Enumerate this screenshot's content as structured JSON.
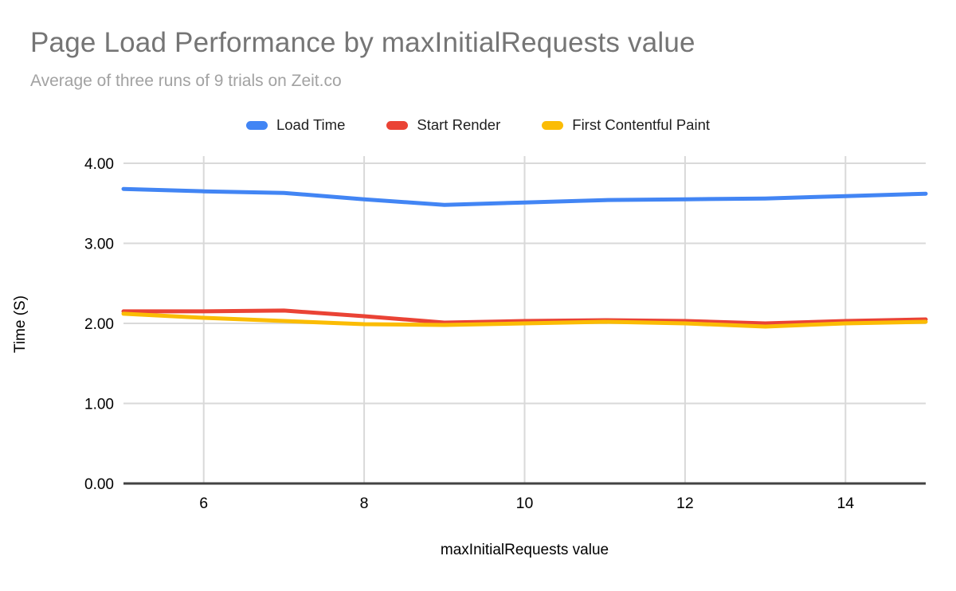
{
  "chart_data": {
    "type": "line",
    "title": "Page Load Performance by maxInitialRequests value",
    "subtitle": "Average of three runs of 9 trials on Zeit.co",
    "xlabel": "maxInitialRequests value",
    "ylabel": "Time (S)",
    "xlim": [
      5,
      15
    ],
    "ylim": [
      0,
      4
    ],
    "grid": true,
    "legend_position": "top",
    "x": [
      5,
      6,
      7,
      8,
      9,
      10,
      11,
      12,
      13,
      14,
      15
    ],
    "x_ticks": [
      {
        "label": "6",
        "value": 6
      },
      {
        "label": "8",
        "value": 8
      },
      {
        "label": "10",
        "value": 10
      },
      {
        "label": "12",
        "value": 12
      },
      {
        "label": "14",
        "value": 14
      }
    ],
    "y_ticks": [
      {
        "label": "0.00",
        "value": 0
      },
      {
        "label": "1.00",
        "value": 1
      },
      {
        "label": "2.00",
        "value": 2
      },
      {
        "label": "3.00",
        "value": 3
      },
      {
        "label": "4.00",
        "value": 4
      }
    ],
    "series": [
      {
        "name": "Load Time",
        "color": "#4285F4",
        "values": [
          3.68,
          3.65,
          3.63,
          3.55,
          3.48,
          3.51,
          3.54,
          3.55,
          3.56,
          3.59,
          3.62
        ]
      },
      {
        "name": "Start Render",
        "color": "#EA4335",
        "values": [
          2.15,
          2.15,
          2.16,
          2.09,
          2.01,
          2.03,
          2.04,
          2.03,
          2.0,
          2.03,
          2.05
        ]
      },
      {
        "name": "First Contentful Paint",
        "color": "#FBBC04",
        "values": [
          2.12,
          2.07,
          2.03,
          1.99,
          1.98,
          2.0,
          2.02,
          2.0,
          1.96,
          2.0,
          2.02
        ]
      }
    ],
    "colors": {
      "gridline": "#d9d9d9",
      "axis_line": "#424242",
      "tick_text": "#000000",
      "title_text": "#757575",
      "subtitle_text": "#a2a2a2"
    }
  }
}
